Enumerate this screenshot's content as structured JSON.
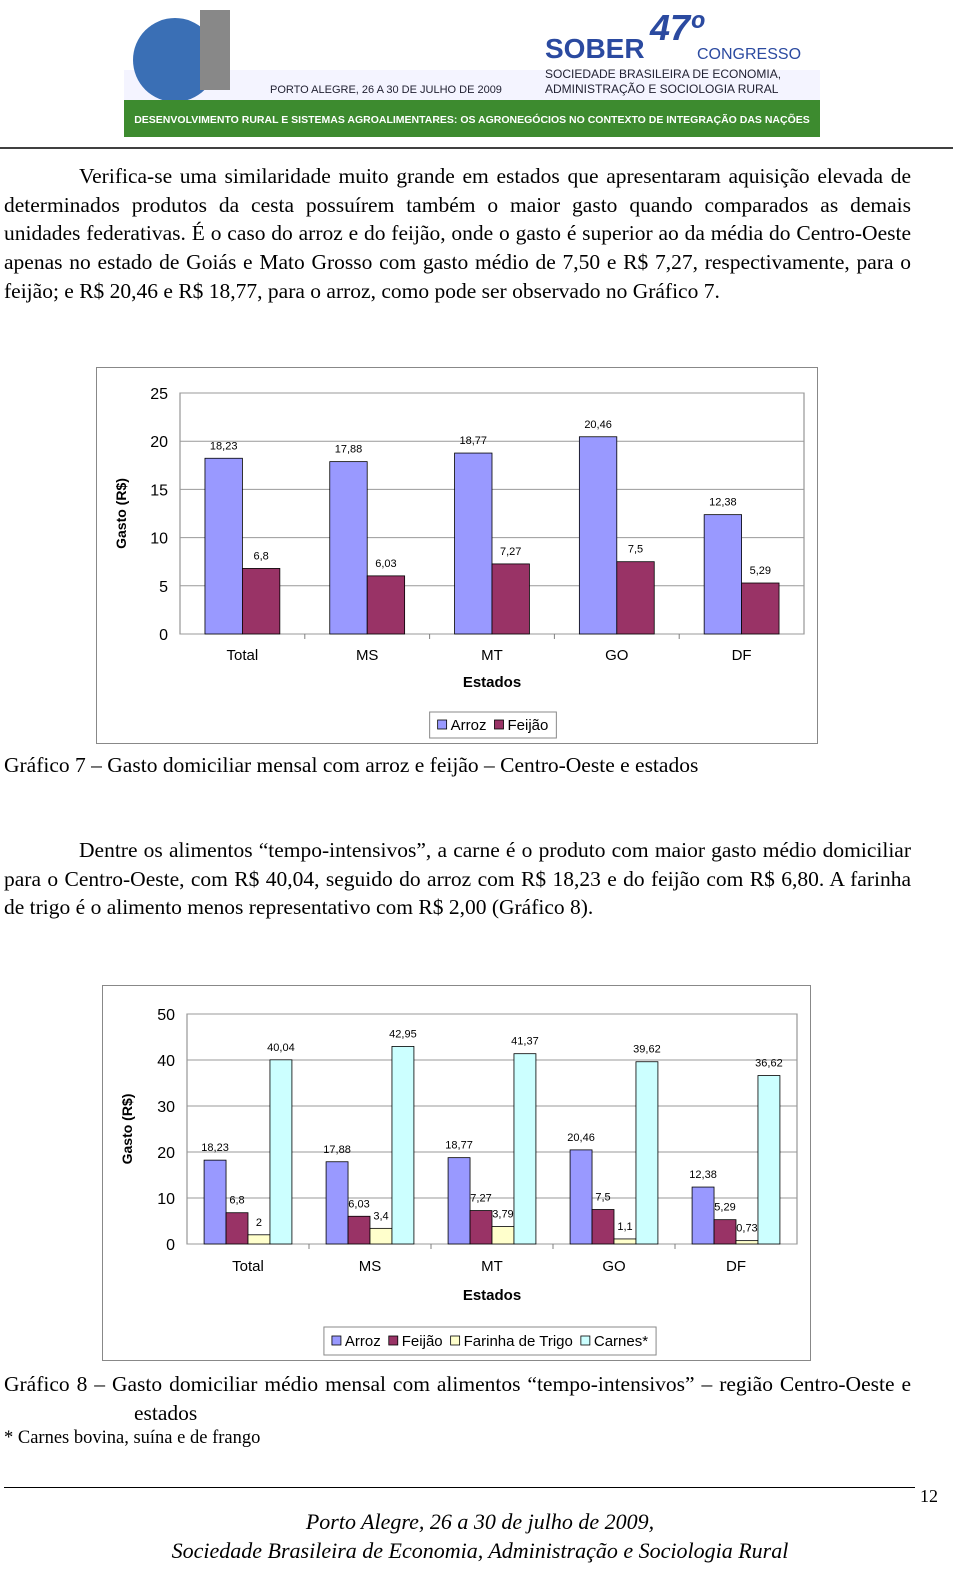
{
  "header": {
    "org": "SOBER",
    "edition": "47º",
    "event": "CONGRESSO",
    "society_line1": "SOCIEDADE BRASILEIRA DE ECONOMIA,",
    "society_line2": "ADMINISTRAÇÃO E SOCIOLOGIA RURAL",
    "place_date": "PORTO ALEGRE, 26 A 30 DE JULHO DE 2009",
    "theme": "DESENVOLVIMENTO RURAL E SISTEMAS AGROALIMENTARES: OS AGRONEGÓCIOS NO CONTEXTO DE INTEGRAÇÃO DAS NAÇÕES"
  },
  "paragraphs": [
    "Verifica-se uma similaridade muito grande em estados que apresentaram aquisição elevada de determinados produtos da cesta possuírem também o maior gasto quando comparados as demais unidades federativas. É o caso do arroz e do feijão, onde o gasto é superior ao da média do Centro-Oeste apenas no estado de Goiás e Mato Grosso com gasto médio de 7,50 e R$ 7,27, respectivamente, para o feijão; e R$ 20,46 e R$ 18,77, para o arroz, como pode ser observado no Gráfico 7.",
    "Dentre os alimentos “tempo-intensivos”, a carne é o produto com maior gasto médio domiciliar para o Centro-Oeste, com R$ 40,04, seguido do arroz com R$ 18,23 e do feijão com R$ 6,80. A farinha de trigo é o alimento menos representativo com R$ 2,00 (Gráfico 8)."
  ],
  "chart_data": [
    {
      "type": "bar",
      "y_label": "Gasto (R$)",
      "x_label": "Estados",
      "categories": [
        "Total",
        "MS",
        "MT",
        "GO",
        "DF"
      ],
      "series": [
        {
          "name": "Arroz",
          "color": "#9999ff",
          "values": [
            18.23,
            17.88,
            18.77,
            20.46,
            12.38
          ],
          "value_labels": [
            "18,23",
            "17,88",
            "18,77",
            "20,46",
            "12,38"
          ]
        },
        {
          "name": "Feijão",
          "color": "#993366",
          "values": [
            6.8,
            6.03,
            7.27,
            7.5,
            5.29
          ],
          "value_labels": [
            "6,8",
            "6,03",
            "7,27",
            "7,5",
            "5,29"
          ]
        }
      ],
      "ylim": [
        0,
        25
      ],
      "yticks": [
        0,
        5,
        10,
        15,
        20,
        25
      ],
      "grid": true,
      "legend": "bottom"
    },
    {
      "type": "bar",
      "y_label": "Gasto (R$)",
      "x_label": "Estados",
      "categories": [
        "Total",
        "MS",
        "MT",
        "GO",
        "DF"
      ],
      "series": [
        {
          "name": "Arroz",
          "color": "#9999ff",
          "values": [
            18.23,
            17.88,
            18.77,
            20.46,
            12.38
          ],
          "value_labels": [
            "18,23",
            "17,88",
            "18,77",
            "20,46",
            "12,38"
          ]
        },
        {
          "name": "Feijão",
          "color": "#993366",
          "values": [
            6.8,
            6.03,
            7.27,
            7.5,
            5.29
          ],
          "value_labels": [
            "6,8",
            "6,03",
            "7,27",
            "7,5",
            "5,29"
          ]
        },
        {
          "name": "Farinha de Trigo",
          "color": "#ffffcc",
          "values": [
            2,
            3.4,
            3.79,
            1.1,
            0.73
          ],
          "value_labels": [
            "2",
            "3,4",
            "3,79",
            "1,1",
            "0,73"
          ]
        },
        {
          "name": "Carnes*",
          "color": "#ccffff",
          "values": [
            40.04,
            42.95,
            41.37,
            39.62,
            36.62
          ],
          "value_labels": [
            "40,04",
            "42,95",
            "41,37",
            "39,62",
            "36,62"
          ]
        }
      ],
      "ylim": [
        0,
        50
      ],
      "yticks": [
        0,
        10,
        20,
        30,
        40,
        50
      ],
      "grid": true,
      "legend": "bottom"
    }
  ],
  "captions": [
    "Gráfico 7 – Gasto domiciliar mensal com arroz e feijão – Centro-Oeste e estados",
    "Gráfico 8 – Gasto domiciliar médio mensal com alimentos “tempo-intensivos” – região Centro-Oeste e estados"
  ],
  "footnote": "* Carnes bovina, suína e de frango",
  "footer": {
    "page_number": "12",
    "line1": "Porto Alegre, 26 a 30 de julho de 2009,",
    "line2": "Sociedade Brasileira de Economia, Administração e Sociologia Rural"
  }
}
